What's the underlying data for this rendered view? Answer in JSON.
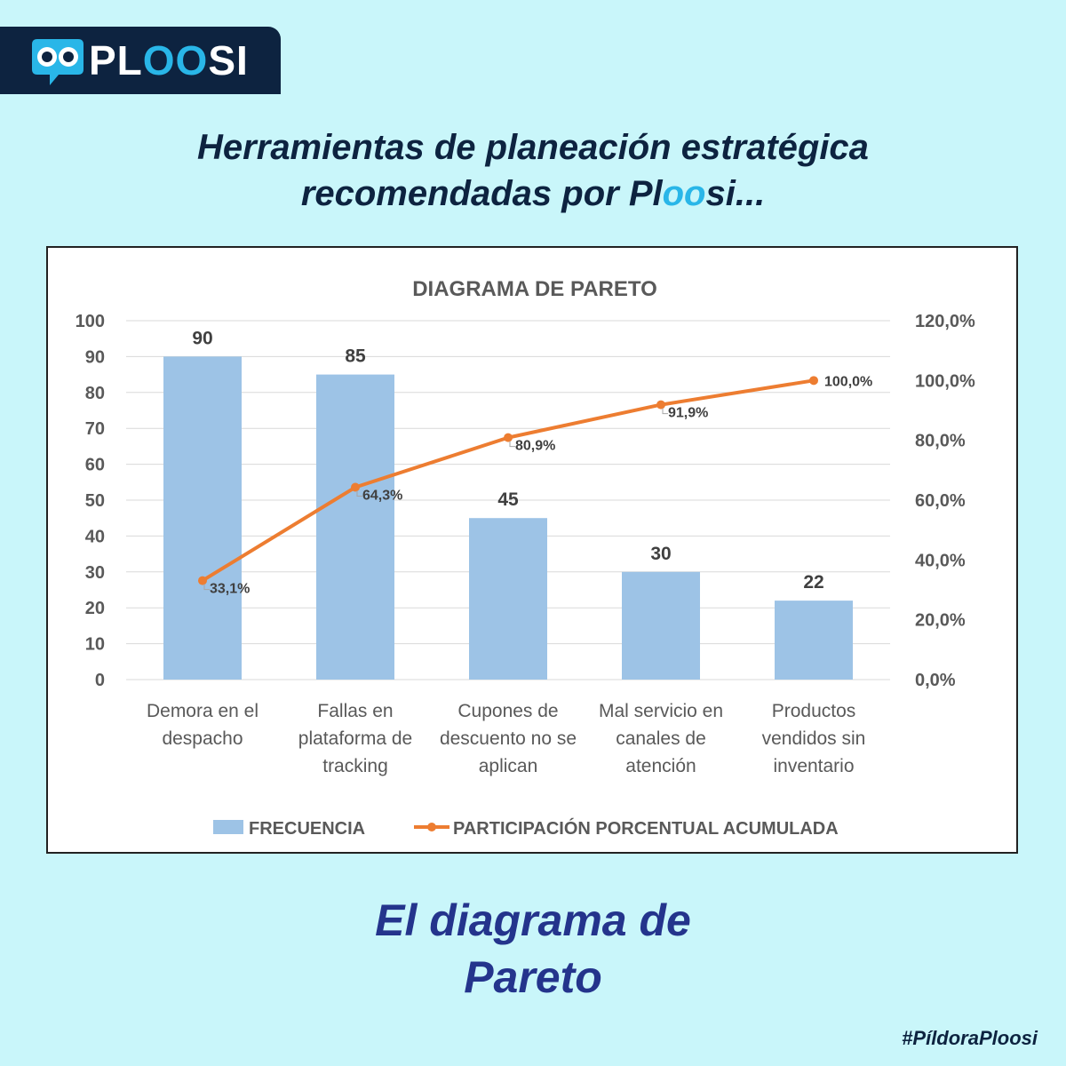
{
  "brand": {
    "name_prefix": "PL",
    "name_highlight": "OO",
    "name_suffix": "SI",
    "icon": "owl-eyes-chat-icon",
    "colors": {
      "navy": "#0d2340",
      "cyan": "#29b6e8",
      "background": "#c9f6fa"
    }
  },
  "headline": {
    "line1": "Herramientas de planeación estratégica",
    "line2_prefix": "recomendadas por Pl",
    "line2_highlight": "oo",
    "line2_suffix": "si..."
  },
  "chart_data": {
    "type": "bar",
    "title": "DIAGRAMA DE PARETO",
    "categories": [
      [
        "Demora en el",
        "despacho"
      ],
      [
        "Fallas en",
        "plataforma de",
        "tracking"
      ],
      [
        "Cupones de",
        "descuento no se",
        "aplican"
      ],
      [
        "Mal servicio en",
        "canales de",
        "atención"
      ],
      [
        "Productos",
        "vendidos sin",
        "inventario"
      ]
    ],
    "series": [
      {
        "name": "FRECUENCIA",
        "type": "bar",
        "axis": "left",
        "color": "#9dc3e6",
        "values": [
          90,
          85,
          45,
          30,
          22
        ],
        "labels": [
          "90",
          "85",
          "45",
          "30",
          "22"
        ]
      },
      {
        "name": "PARTICIPACIÓN PORCENTUAL ACUMULADA",
        "type": "line",
        "axis": "right",
        "color": "#ed7d31",
        "values": [
          33.1,
          64.3,
          80.9,
          91.9,
          100.0
        ],
        "labels": [
          "33,1%",
          "64,3%",
          "80,9%",
          "91,9%",
          "100,0%"
        ]
      }
    ],
    "y_left": {
      "min": 0,
      "max": 100,
      "step": 10,
      "ticks": [
        "0",
        "10",
        "20",
        "30",
        "40",
        "50",
        "60",
        "70",
        "80",
        "90",
        "100"
      ]
    },
    "y_right": {
      "min": 0,
      "max": 120,
      "step": 20,
      "ticks": [
        "0,0%",
        "20,0%",
        "40,0%",
        "60,0%",
        "80,0%",
        "100,0%",
        "120,0%"
      ]
    },
    "grid": true,
    "legend": "bottom"
  },
  "footer": {
    "title_line1": "El diagrama de",
    "title_line2": "Pareto",
    "hashtag": "#PíldoraPloosi"
  }
}
